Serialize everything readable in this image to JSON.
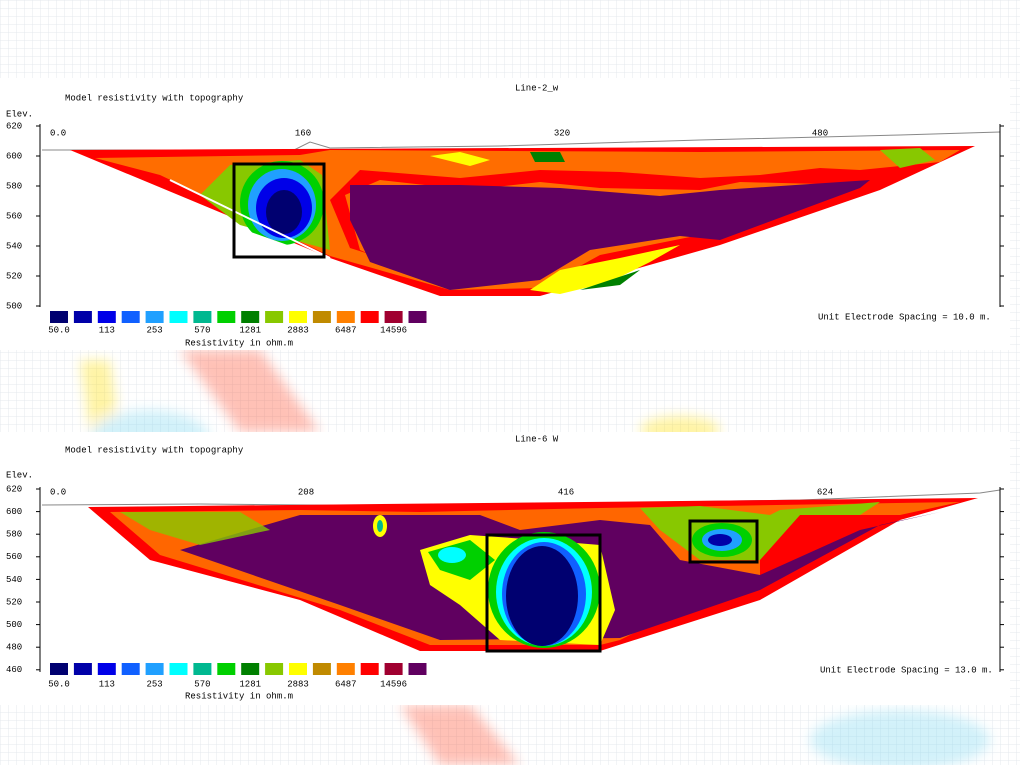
{
  "panels": [
    {
      "title": "Line-2_w",
      "subtitle": "Model resistivity with topography",
      "elev_label": "Elev.",
      "x_ticks": [
        "0.0",
        "160",
        "320",
        "480"
      ],
      "y_ticks": [
        "620",
        "600",
        "580",
        "560",
        "540",
        "520",
        "500"
      ],
      "legend_labels": [
        "50.0",
        "113",
        "253",
        "570",
        "1281",
        "2883",
        "6487",
        "14596"
      ],
      "legend_title": "Resistivity in ohm.m",
      "spacing_note": "Unit Electrode Spacing = 10.0 m."
    },
    {
      "title": "Line-6 W",
      "subtitle": "Model resistivity with topography",
      "elev_label": "Elev.",
      "x_ticks": [
        "0.0",
        "208",
        "416",
        "624"
      ],
      "y_ticks": [
        "620",
        "600",
        "580",
        "560",
        "540",
        "520",
        "500",
        "480",
        "460"
      ],
      "legend_labels": [
        "50.0",
        "113",
        "253",
        "570",
        "1281",
        "2883",
        "6487",
        "14596"
      ],
      "legend_title": "Resistivity in ohm.m",
      "spacing_note": "Unit Electrode Spacing = 13.0 m."
    }
  ],
  "legend_colors": [
    "#000070",
    "#0000a8",
    "#0000e8",
    "#1060ff",
    "#20a0ff",
    "#00ffff",
    "#00b890",
    "#00d000",
    "#008000",
    "#88c800",
    "#ffff00",
    "#c08a00",
    "#ff8000",
    "#ff0000",
    "#a00030",
    "#600060"
  ]
}
